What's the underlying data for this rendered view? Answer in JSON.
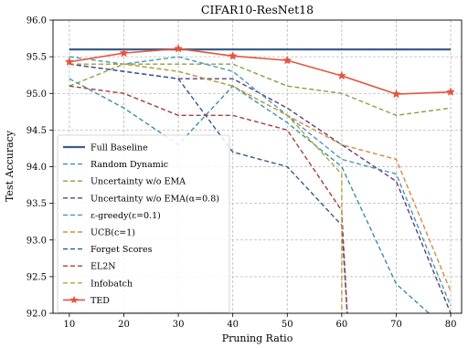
{
  "chart_data": {
    "type": "line",
    "title": "CIFAR10-ResNet18",
    "xlabel": "Pruning Ratio",
    "ylabel": "Test Accuracy",
    "xlim": [
      7,
      82
    ],
    "ylim": [
      92.0,
      96.0
    ],
    "x_ticks": [
      "10",
      "20",
      "30",
      "40",
      "50",
      "60",
      "70",
      "80"
    ],
    "x_tick_values": [
      10,
      20,
      30,
      40,
      50,
      60,
      70,
      80
    ],
    "y_ticks": [
      "92.0",
      "92.5",
      "93.0",
      "93.5",
      "94.0",
      "94.5",
      "95.0",
      "95.5",
      "96.0"
    ],
    "y_tick_values": [
      92.0,
      92.5,
      93.0,
      93.5,
      94.0,
      94.5,
      95.0,
      95.5,
      96.0
    ],
    "grid": true,
    "legend_position": "lower-left",
    "series": [
      {
        "name": "Full Baseline",
        "color": "#3a5f8a",
        "style": "solid",
        "width": 2.2,
        "marker": "none",
        "x": [
          10,
          80
        ],
        "y": [
          95.6,
          95.6
        ]
      },
      {
        "name": "Random Dynamic",
        "color": "#3b8fa8",
        "style": "dashed",
        "width": 1.4,
        "marker": "none",
        "x": [
          10,
          20,
          30,
          40,
          50,
          60,
          70,
          76
        ],
        "y": [
          95.2,
          94.8,
          94.3,
          95.1,
          94.6,
          94.0,
          92.4,
          92.0
        ]
      },
      {
        "name": "Uncertainty w/o EMA",
        "color": "#86a043",
        "style": "dashed",
        "width": 1.4,
        "marker": "none",
        "x": [
          10,
          20,
          30,
          40,
          50,
          60,
          70,
          80
        ],
        "y": [
          95.1,
          95.4,
          95.4,
          95.4,
          95.1,
          95.0,
          94.7,
          94.8
        ]
      },
      {
        "name": "Uncertainty w/o EMA(α=0.8)",
        "color": "#5d3f7d",
        "style": "dashed",
        "width": 1.4,
        "marker": "none",
        "x": [
          10,
          20,
          30,
          40,
          50,
          60,
          70,
          80
        ],
        "y": [
          95.4,
          95.3,
          95.2,
          95.2,
          94.8,
          94.3,
          93.8,
          92.0
        ]
      },
      {
        "name": "ε-greedy(ε=0.1)",
        "color": "#4698b8",
        "style": "dashed",
        "width": 1.4,
        "marker": "none",
        "x": [
          10,
          20,
          30,
          40,
          50,
          60,
          70,
          80
        ],
        "y": [
          95.5,
          95.4,
          95.5,
          95.3,
          94.7,
          94.1,
          93.9,
          92.1
        ]
      },
      {
        "name": "UCB(c=1)",
        "color": "#d38a3f",
        "style": "dashed",
        "width": 1.4,
        "marker": "none",
        "x": [
          10,
          20,
          30,
          40,
          50,
          60,
          70,
          80
        ],
        "y": [
          95.4,
          95.4,
          95.3,
          95.1,
          94.7,
          94.3,
          94.1,
          92.3
        ]
      },
      {
        "name": "Forget Scores",
        "color": "#2f5b88",
        "style": "dashed",
        "width": 1.4,
        "marker": "none",
        "x": [
          10,
          20,
          30,
          40,
          50,
          60,
          61
        ],
        "y": [
          95.4,
          95.3,
          95.2,
          94.2,
          94.0,
          93.2,
          92.0
        ]
      },
      {
        "name": "EL2N",
        "color": "#a53f3f",
        "style": "dashed",
        "width": 1.4,
        "marker": "none",
        "x": [
          10,
          20,
          30,
          40,
          50,
          60,
          61
        ],
        "y": [
          95.1,
          95.0,
          94.7,
          94.7,
          94.5,
          93.4,
          92.0
        ]
      },
      {
        "name": "Infobatch",
        "color": "#b5a13b",
        "style": "dashed",
        "width": 1.4,
        "marker": "none",
        "x": [
          10,
          20,
          30,
          40,
          50,
          60,
          60
        ],
        "y": [
          95.4,
          95.4,
          95.3,
          95.1,
          94.7,
          93.9,
          92.0
        ]
      },
      {
        "name": "TED",
        "color": "#e5553e",
        "style": "solid",
        "width": 1.6,
        "marker": "star",
        "x": [
          10,
          20,
          30,
          40,
          50,
          60,
          70,
          80
        ],
        "y": [
          95.43,
          95.55,
          95.61,
          95.51,
          95.45,
          95.24,
          94.99,
          95.02
        ]
      }
    ]
  }
}
